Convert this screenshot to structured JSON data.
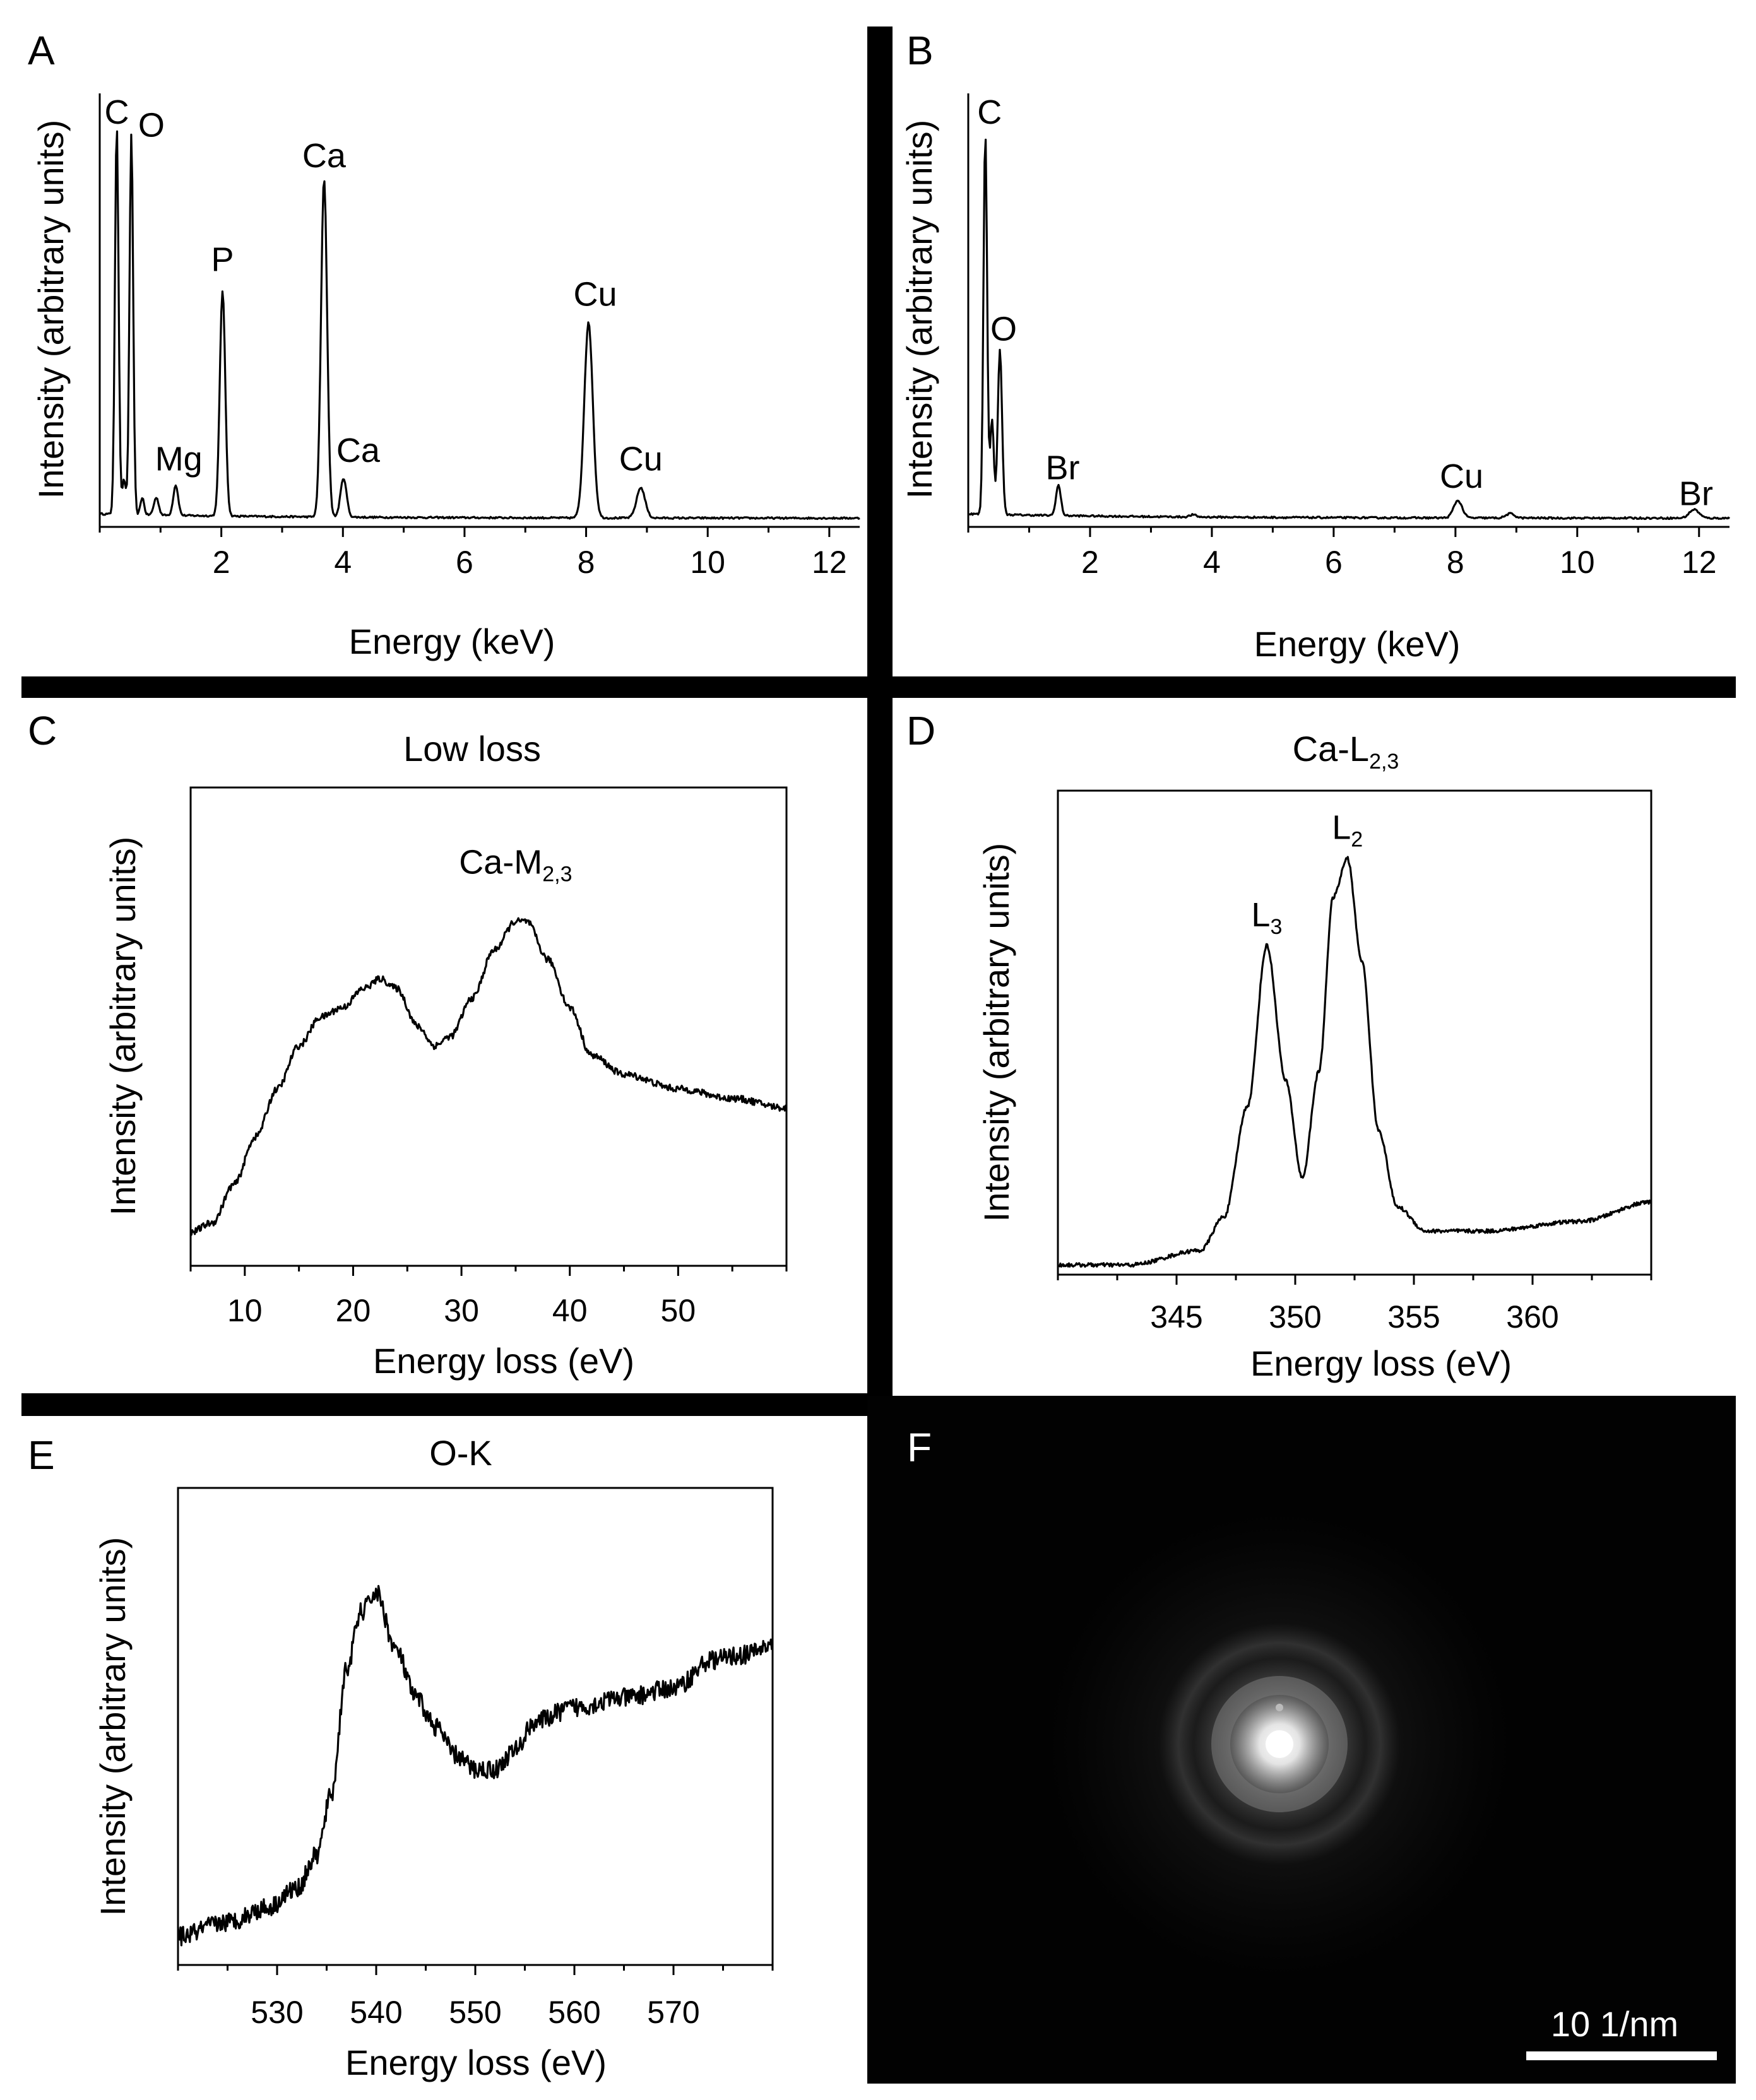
{
  "figure": {
    "scale_bar_label": "10 1/nm"
  },
  "chart_data": [
    {
      "id": "A",
      "type": "line",
      "panel_label": "A",
      "xlabel": "Energy (keV)",
      "ylabel": "Intensity (arbitrary units)",
      "xlim": [
        0,
        12.5
      ],
      "ylim": [
        0,
        1.0
      ],
      "xticks": [
        2,
        4,
        6,
        8,
        10,
        12
      ],
      "baseline": 0.02,
      "peaks": [
        {
          "x": 0.28,
          "h": 0.9,
          "w": 0.03
        },
        {
          "x": 0.4,
          "h": 0.08,
          "w": 0.03
        },
        {
          "x": 0.52,
          "h": 0.88,
          "w": 0.03
        },
        {
          "x": 0.7,
          "h": 0.04,
          "w": 0.03
        },
        {
          "x": 0.93,
          "h": 0.04,
          "w": 0.04
        },
        {
          "x": 1.25,
          "h": 0.07,
          "w": 0.04
        },
        {
          "x": 2.02,
          "h": 0.52,
          "w": 0.045
        },
        {
          "x": 3.69,
          "h": 0.78,
          "w": 0.05
        },
        {
          "x": 4.01,
          "h": 0.09,
          "w": 0.05
        },
        {
          "x": 8.04,
          "h": 0.45,
          "w": 0.07
        },
        {
          "x": 8.9,
          "h": 0.07,
          "w": 0.07
        }
      ],
      "annotations": [
        {
          "text": "C",
          "x": 0.28,
          "y": 0.93
        },
        {
          "text": "O",
          "x": 0.85,
          "y": 0.9
        },
        {
          "text": "Mg",
          "x": 1.3,
          "y": 0.13
        },
        {
          "text": "P",
          "x": 2.02,
          "y": 0.59
        },
        {
          "text": "Ca",
          "x": 3.69,
          "y": 0.83
        },
        {
          "text": "Ca",
          "x": 4.25,
          "y": 0.15
        },
        {
          "text": "Cu",
          "x": 8.15,
          "y": 0.51
        },
        {
          "text": "Cu",
          "x": 8.9,
          "y": 0.13
        }
      ]
    },
    {
      "id": "B",
      "type": "line",
      "panel_label": "B",
      "xlabel": "Energy (keV)",
      "ylabel": "Intensity (arbitrary units)",
      "xlim": [
        0,
        12.5
      ],
      "ylim": [
        0,
        1.0
      ],
      "xticks": [
        2,
        4,
        6,
        8,
        10,
        12
      ],
      "baseline": 0.02,
      "peaks": [
        {
          "x": 0.28,
          "h": 0.88,
          "w": 0.03
        },
        {
          "x": 0.39,
          "h": 0.22,
          "w": 0.03
        },
        {
          "x": 0.52,
          "h": 0.38,
          "w": 0.035
        },
        {
          "x": 1.48,
          "h": 0.07,
          "w": 0.04
        },
        {
          "x": 3.69,
          "h": 0.005,
          "w": 0.05
        },
        {
          "x": 8.04,
          "h": 0.04,
          "w": 0.07
        },
        {
          "x": 8.9,
          "h": 0.01,
          "w": 0.07
        },
        {
          "x": 11.92,
          "h": 0.02,
          "w": 0.08
        }
      ],
      "annotations": [
        {
          "text": "C",
          "x": 0.35,
          "y": 0.93
        },
        {
          "text": "O",
          "x": 0.58,
          "y": 0.43
        },
        {
          "text": "Br",
          "x": 1.55,
          "y": 0.11
        },
        {
          "text": "Cu",
          "x": 8.1,
          "y": 0.09
        },
        {
          "text": "Br",
          "x": 11.95,
          "y": 0.05
        }
      ]
    },
    {
      "id": "C",
      "type": "line",
      "panel_label": "C",
      "title": "Low loss",
      "xlabel": "Energy loss (eV)",
      "ylabel": "Intensity (arbitrary units)",
      "xlim": [
        5,
        60
      ],
      "ylim": [
        0,
        1.0
      ],
      "xticks": [
        10,
        20,
        30,
        40,
        50
      ],
      "x": [
        5,
        7,
        9,
        11,
        13,
        15,
        17,
        19,
        21,
        22.5,
        24,
        26,
        27.5,
        29,
        31,
        33,
        35,
        36,
        38,
        40,
        42,
        45,
        50,
        55,
        60
      ],
      "values": [
        0.07,
        0.09,
        0.17,
        0.27,
        0.37,
        0.46,
        0.52,
        0.54,
        0.58,
        0.6,
        0.58,
        0.5,
        0.46,
        0.48,
        0.56,
        0.66,
        0.72,
        0.72,
        0.64,
        0.54,
        0.44,
        0.4,
        0.37,
        0.35,
        0.33
      ],
      "noise": 0.007,
      "annotations": [
        {
          "text": "Ca-M",
          "sub": "2,3",
          "x": 35,
          "y": 0.82
        }
      ]
    },
    {
      "id": "D",
      "type": "line",
      "panel_label": "D",
      "title": "Ca-L",
      "title_sub": "2,3",
      "xlabel": "Energy loss (eV)",
      "ylabel": "Intensity (arbitrary units)",
      "xlim": [
        340,
        365
      ],
      "ylim": [
        0,
        1.0
      ],
      "xticks": [
        345,
        350,
        355,
        360
      ],
      "x": [
        340,
        343,
        346,
        347,
        348,
        348.8,
        349.6,
        350.3,
        351,
        351.6,
        352.2,
        352.8,
        353.5,
        354.3,
        355.5,
        358,
        362,
        365
      ],
      "values": [
        0.02,
        0.02,
        0.05,
        0.12,
        0.35,
        0.68,
        0.4,
        0.2,
        0.42,
        0.78,
        0.86,
        0.65,
        0.3,
        0.14,
        0.09,
        0.09,
        0.11,
        0.15
      ],
      "noise": 0.004,
      "annotations": [
        {
          "text": "L",
          "sub": "3",
          "x": 348.8,
          "y": 0.72
        },
        {
          "text": "L",
          "sub": "2",
          "x": 352.2,
          "y": 0.9
        }
      ]
    },
    {
      "id": "E",
      "type": "line",
      "panel_label": "E",
      "title": "O-K",
      "xlabel": "Energy loss (eV)",
      "ylabel": "Intensity (arbitrary units)",
      "xlim": [
        520,
        580
      ],
      "ylim": [
        0,
        1.0
      ],
      "xticks": [
        530,
        540,
        550,
        560,
        570
      ],
      "x": [
        520,
        525,
        529,
        532,
        534,
        535.5,
        537,
        538.5,
        540,
        542,
        544,
        546,
        548,
        550,
        552,
        554,
        556,
        560,
        565,
        570,
        574,
        577,
        580
      ],
      "values": [
        0.06,
        0.09,
        0.12,
        0.16,
        0.23,
        0.36,
        0.62,
        0.74,
        0.78,
        0.66,
        0.56,
        0.5,
        0.44,
        0.41,
        0.41,
        0.45,
        0.51,
        0.54,
        0.56,
        0.58,
        0.64,
        0.65,
        0.67
      ],
      "noise": 0.02,
      "annotations": []
    }
  ]
}
